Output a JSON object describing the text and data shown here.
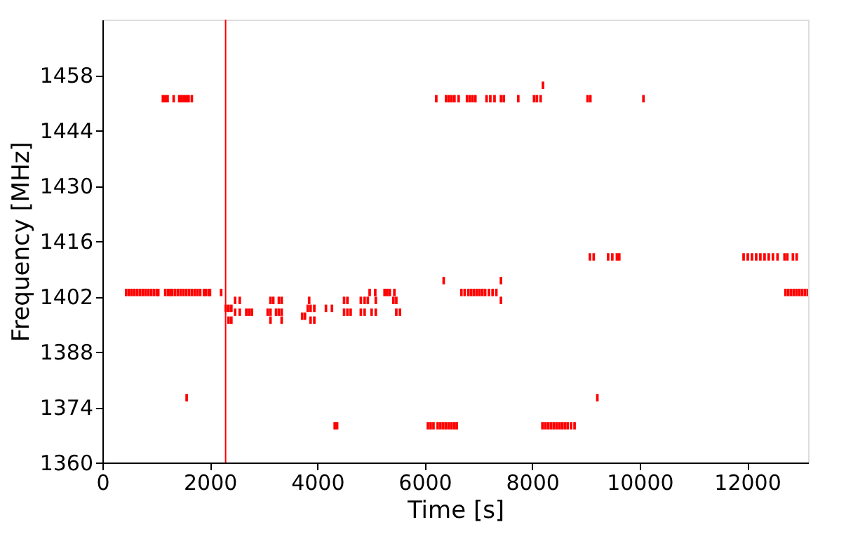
{
  "chart_data": {
    "type": "scatter",
    "xlabel": "Time [s]",
    "ylabel": "Frequency [MHz]",
    "xlim": [
      0,
      13135
    ],
    "ylim": [
      1360,
      1472
    ],
    "xticks": [
      0,
      2000,
      4000,
      6000,
      8000,
      10000,
      12000
    ],
    "yticks": [
      1360,
      1374,
      1388,
      1402,
      1416,
      1430,
      1444,
      1458
    ],
    "grid": false,
    "marker": "square",
    "ref_lines": [
      {
        "axis": "x",
        "value": 2293,
        "color": "#ff0000"
      }
    ],
    "series": [
      {
        "color": "#ff0000",
        "x": [
          1126,
          1170,
          1213,
          1326,
          1430,
          1474,
          1517,
          1560,
          1604,
          1664,
          6214,
          6396,
          6448,
          6500,
          6552,
          6630,
          6786,
          6838,
          6890,
          6942,
          7150,
          7220,
          7298,
          7418,
          7470,
          7740,
          8034,
          8086,
          8156,
          9030,
          9082,
          10070,
          8200,
          9074,
          9144,
          9412,
          9490,
          9576,
          9620,
          11934,
          12012,
          12090,
          12168,
          12246,
          12324,
          12402,
          12480,
          12566,
          12696,
          12748,
          12852,
          12922,
          442,
          494,
          546,
          598,
          650,
          702,
          754,
          806,
          858,
          910,
          962,
          1014,
          1040,
          1170,
          1222,
          1266,
          1300,
          1352,
          1404,
          1456,
          1508,
          1560,
          1612,
          1664,
          1716,
          1768,
          1820,
          1890,
          1924,
          1976,
          2002,
          2210,
          6682,
          6742,
          6812,
          6864,
          6916,
          6968,
          7020,
          7072,
          7124,
          7194,
          7262,
          7332,
          7418,
          7418,
          6352,
          12714,
          12766,
          12818,
          12870,
          12922,
          12974,
          13026,
          13078,
          13130,
          2296,
          2348,
          2400,
          2348,
          2400,
          2470,
          2470,
          2556,
          2556,
          2678,
          2730,
          2782,
          3076,
          3128,
          3128,
          3128,
          3180,
          3232,
          3284,
          3284,
          3336,
          3336,
          3336,
          3718,
          3770,
          3848,
          3822,
          3874,
          3944,
          3874,
          3944,
          4160,
          4272,
          4498,
          4498,
          4560,
          4560,
          4620,
          4810,
          4810,
          4880,
          4880,
          4940,
          4974,
          5010,
          5078,
          5088,
          5088,
          5252,
          5300,
          5348,
          5416,
          5434,
          5470,
          5470,
          5538,
          4324,
          4368,
          6058,
          6110,
          6162,
          6240,
          6292,
          6344,
          6396,
          6448,
          6500,
          6552,
          6596,
          8190,
          8242,
          8294,
          8346,
          8398,
          8450,
          8502,
          8554,
          8606,
          8658,
          8723,
          8788,
          1568,
          9212
        ],
        "values": [
          1452,
          1452,
          1452,
          1452,
          1452,
          1452,
          1452,
          1452,
          1452,
          1452,
          1452,
          1452,
          1452,
          1452,
          1452,
          1452,
          1452,
          1452,
          1452,
          1452,
          1452,
          1452,
          1452,
          1452,
          1452,
          1452,
          1452,
          1452,
          1452,
          1452,
          1452,
          1452,
          1455.4,
          1412,
          1412,
          1412,
          1412,
          1412,
          1412,
          1412,
          1412,
          1412,
          1412,
          1412,
          1412,
          1412,
          1412,
          1412,
          1412,
          1412,
          1412,
          1412,
          1403,
          1403,
          1403,
          1403,
          1403,
          1403,
          1403,
          1403,
          1403,
          1403,
          1403,
          1403,
          1403,
          1403,
          1403,
          1403,
          1403,
          1403,
          1403,
          1403,
          1403,
          1403,
          1403,
          1403,
          1403,
          1403,
          1403,
          1403,
          1403,
          1403,
          1403,
          1403,
          1403,
          1403,
          1403,
          1403,
          1403,
          1403,
          1403,
          1403,
          1403,
          1403,
          1403,
          1403,
          1406,
          1401,
          1406,
          1403,
          1403,
          1403,
          1403,
          1403,
          1403,
          1403,
          1403,
          1403,
          1399,
          1399,
          1399,
          1396,
          1396,
          1401,
          1398,
          1401,
          1398,
          1398,
          1398,
          1398,
          1398,
          1401,
          1398,
          1396,
          1401,
          1398,
          1401,
          1398,
          1401,
          1398,
          1396,
          1397,
          1397,
          1401,
          1399,
          1399,
          1399,
          1396,
          1396,
          1399,
          1399,
          1401,
          1398,
          1401,
          1398,
          1398,
          1401,
          1398,
          1401,
          1398,
          1401,
          1403,
          1398,
          1403,
          1401,
          1398,
          1403,
          1403,
          1403,
          1401,
          1403,
          1401,
          1398,
          1398,
          1369.3,
          1369.3,
          1369.3,
          1369.3,
          1369.3,
          1369.3,
          1369.3,
          1369.3,
          1369.3,
          1369.3,
          1369.3,
          1369.3,
          1369.3,
          1369.3,
          1369.3,
          1369.3,
          1369.3,
          1369.3,
          1369.3,
          1369.3,
          1369.3,
          1369.3,
          1369.3,
          1369.3,
          1369.3,
          1376.4,
          1376.4
        ]
      }
    ]
  }
}
